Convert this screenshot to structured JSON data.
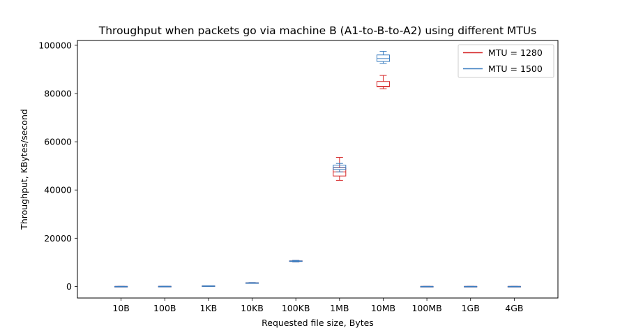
{
  "chart_data": {
    "type": "box",
    "title": "Throughput when packets go via machine B (A1-to-B-to-A2) using different MTUs",
    "xlabel": "Requested file size, Bytes",
    "ylabel": "Throughput, KBytes/second",
    "categories": [
      "10B",
      "100B",
      "1KB",
      "10KB",
      "100KB",
      "1MB",
      "10MB",
      "100MB",
      "1GB",
      "4GB"
    ],
    "ylim": [
      -4800,
      102000
    ],
    "yticks": [
      0,
      20000,
      40000,
      60000,
      80000,
      100000
    ],
    "ytick_labels": [
      "0",
      "20000",
      "40000",
      "60000",
      "80000",
      "100000"
    ],
    "grid": false,
    "legend_position": "top-right",
    "series": [
      {
        "name": "MTU = 1280",
        "color": "#d62728",
        "boxes": [
          {
            "min": 2,
            "q1": 3,
            "median": 4,
            "q3": 5,
            "max": 6
          },
          {
            "min": 20,
            "q1": 25,
            "median": 30,
            "q3": 35,
            "max": 40
          },
          {
            "min": 150,
            "q1": 180,
            "median": 200,
            "q3": 220,
            "max": 250
          },
          {
            "min": 1300,
            "q1": 1400,
            "median": 1450,
            "q3": 1500,
            "max": 1600
          },
          {
            "min": 10200,
            "q1": 10400,
            "median": 10500,
            "q3": 10600,
            "max": 10800
          },
          {
            "min": 44000,
            "q1": 45800,
            "median": 47500,
            "q3": 49200,
            "max": 53500
          },
          {
            "min": 82000,
            "q1": 82800,
            "median": 83000,
            "q3": 85000,
            "max": 87500
          },
          {
            "min": 2,
            "q1": 3,
            "median": 4,
            "q3": 5,
            "max": 6
          },
          {
            "min": 2,
            "q1": 3,
            "median": 4,
            "q3": 5,
            "max": 6
          },
          {
            "min": 2,
            "q1": 3,
            "median": 4,
            "q3": 5,
            "max": 6
          }
        ]
      },
      {
        "name": "MTU = 1500",
        "color": "#3a7dc0",
        "boxes": [
          {
            "min": 2,
            "q1": 3,
            "median": 4,
            "q3": 5,
            "max": 6
          },
          {
            "min": 20,
            "q1": 25,
            "median": 30,
            "q3": 35,
            "max": 40
          },
          {
            "min": 150,
            "q1": 180,
            "median": 200,
            "q3": 220,
            "max": 250
          },
          {
            "min": 1300,
            "q1": 1400,
            "median": 1450,
            "q3": 1500,
            "max": 1600
          },
          {
            "min": 10200,
            "q1": 10400,
            "median": 10500,
            "q3": 10600,
            "max": 10800
          },
          {
            "min": 47500,
            "q1": 48500,
            "median": 49300,
            "q3": 50300,
            "max": 51000
          },
          {
            "min": 92500,
            "q1": 93300,
            "median": 94500,
            "q3": 96000,
            "max": 97500
          },
          {
            "min": 2,
            "q1": 3,
            "median": 4,
            "q3": 5,
            "max": 6
          },
          {
            "min": 2,
            "q1": 3,
            "median": 4,
            "q3": 5,
            "max": 6
          },
          {
            "min": 2,
            "q1": 3,
            "median": 4,
            "q3": 5,
            "max": 6
          }
        ]
      }
    ]
  }
}
